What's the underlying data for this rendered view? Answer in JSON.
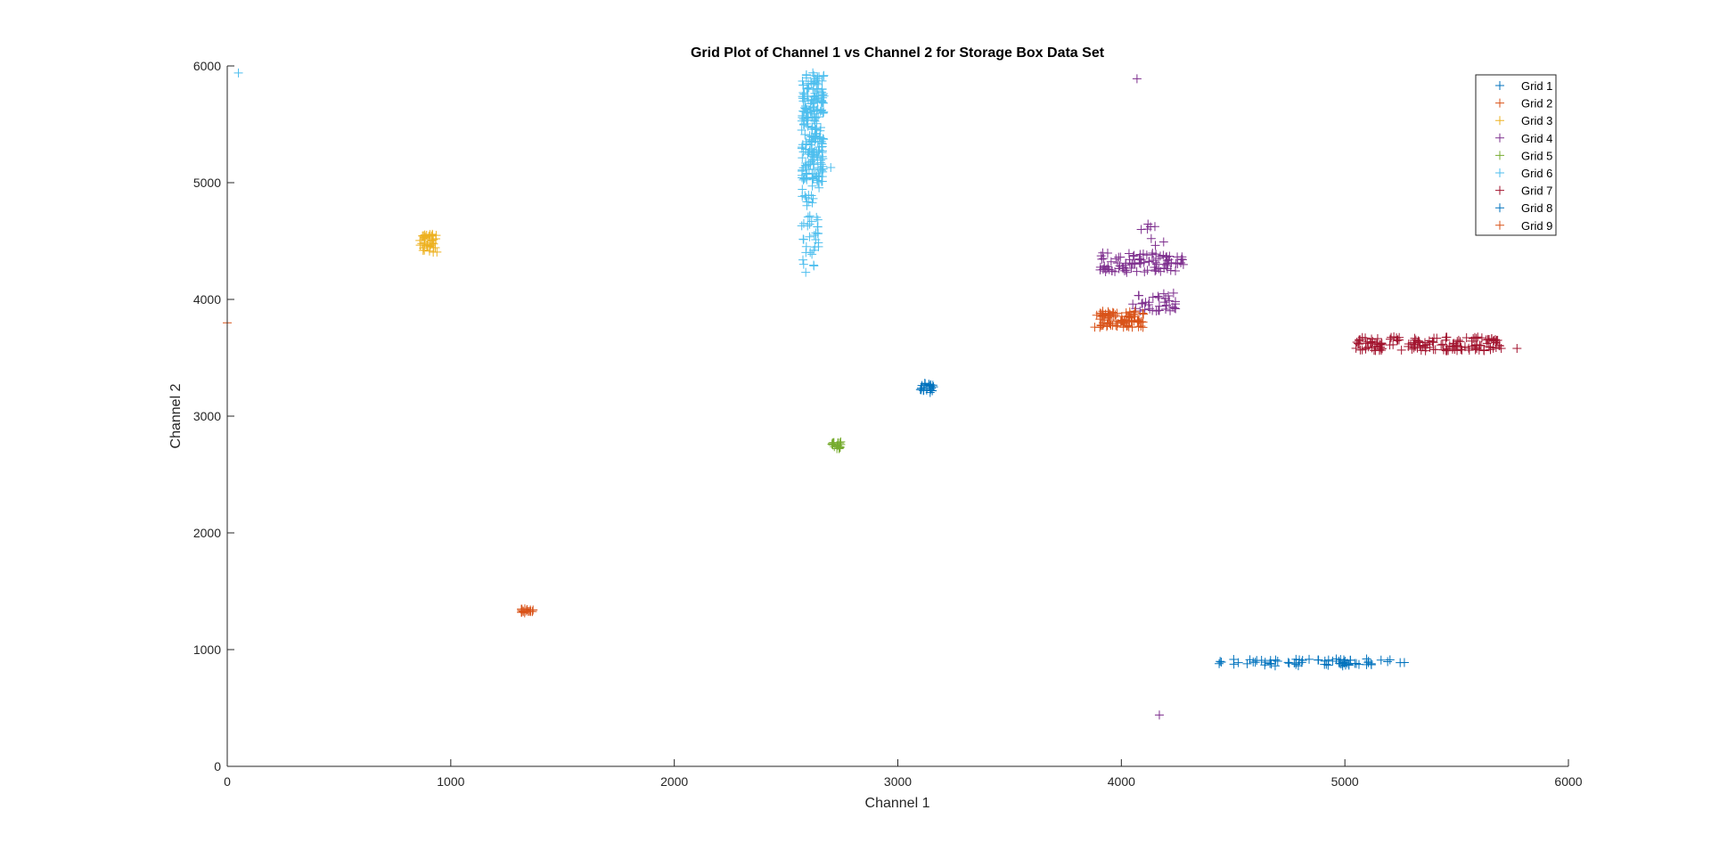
{
  "chart_data": {
    "type": "scatter",
    "title": "Grid Plot of Channel 1 vs Channel 2 for Storage Box Data Set",
    "xlabel": "Channel 1",
    "ylabel": "Channel 2",
    "xlim": [
      0,
      6000
    ],
    "ylim": [
      0,
      6000
    ],
    "xticks": [
      0,
      1000,
      2000,
      3000,
      4000,
      5000,
      6000
    ],
    "yticks": [
      0,
      1000,
      2000,
      3000,
      4000,
      5000,
      6000
    ],
    "grid": false,
    "marker": "+",
    "legend_position": "top-right",
    "series": [
      {
        "name": "Grid 1",
        "color": "#0072BD",
        "clusters": [
          {
            "x": [
              4430,
              5270
            ],
            "y": [
              860,
              920
            ],
            "n": 70
          }
        ]
      },
      {
        "name": "Grid 2",
        "color": "#D95319",
        "clusters": [
          {
            "x": [
              1310,
              1370
            ],
            "y": [
              1315,
              1350
            ],
            "n": 18
          }
        ]
      },
      {
        "name": "Grid 3",
        "color": "#EDB120",
        "clusters": [
          {
            "x": [
              860,
              940
            ],
            "y": [
              4400,
              4560
            ],
            "n": 40
          }
        ]
      },
      {
        "name": "Grid 4",
        "color": "#7E2F8E",
        "clusters": [
          {
            "x": [
              3900,
              4280
            ],
            "y": [
              4230,
              4400
            ],
            "n": 90
          },
          {
            "x": [
              4050,
              4250
            ],
            "y": [
              3900,
              4060
            ],
            "n": 35
          },
          {
            "x": [
              4080,
              4200
            ],
            "y": [
              4420,
              4650
            ],
            "n": 8
          }
        ],
        "points": [
          [
            4070,
            5890
          ],
          [
            4170,
            440
          ]
        ]
      },
      {
        "name": "Grid 5",
        "color": "#77AC30",
        "clusters": [
          {
            "x": [
              2700,
              2750
            ],
            "y": [
              2720,
              2780
            ],
            "n": 18
          }
        ]
      },
      {
        "name": "Grid 6",
        "color": "#4DBEEE",
        "clusters": [
          {
            "x": [
              2570,
              2670
            ],
            "y": [
              5000,
              5950
            ],
            "n": 220
          },
          {
            "x": [
              2570,
              2650
            ],
            "y": [
              4230,
              5000
            ],
            "n": 45
          }
        ],
        "points": [
          [
            50,
            5940
          ],
          [
            2700,
            5130
          ]
        ]
      },
      {
        "name": "Grid 7",
        "color": "#A2142F",
        "clusters": [
          {
            "x": [
              5040,
              5700
            ],
            "y": [
              3560,
              3680
            ],
            "n": 150
          }
        ],
        "points": [
          [
            5770,
            3580
          ]
        ]
      },
      {
        "name": "Grid 8",
        "color": "#0072BD",
        "clusters": [
          {
            "x": [
              3100,
              3160
            ],
            "y": [
              3200,
              3290
            ],
            "n": 22
          }
        ]
      },
      {
        "name": "Grid 9",
        "color": "#D95319",
        "clusters": [
          {
            "x": [
              3880,
              4100
            ],
            "y": [
              3760,
              3900
            ],
            "n": 90
          }
        ],
        "points": [
          [
            0,
            3800
          ]
        ]
      }
    ]
  }
}
